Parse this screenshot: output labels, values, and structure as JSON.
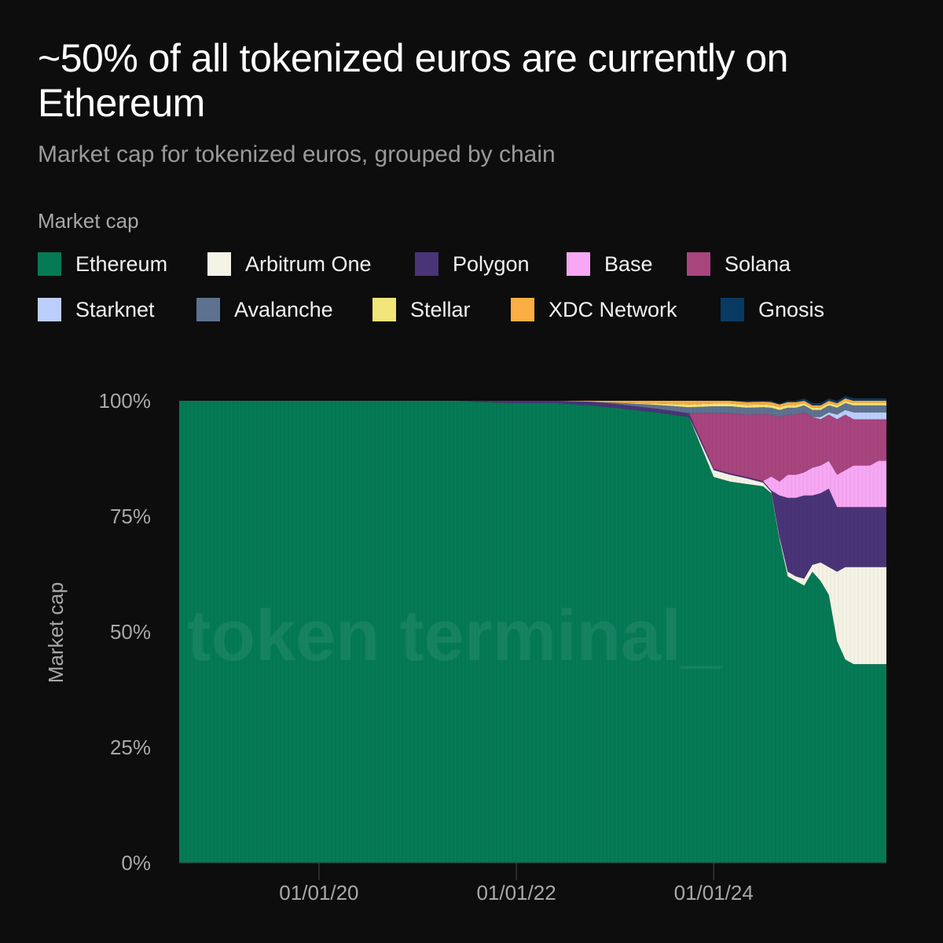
{
  "title": "~50% of all tokenized euros are currently on Ethereum",
  "subtitle": "Market cap for tokenized euros, grouped by chain",
  "legend_title": "Market cap",
  "watermark": "token terminal_",
  "colors": {
    "background": "#0d0d0d",
    "Ethereum": "#057a55",
    "Arbitrum One": "#f5f3e6",
    "Polygon": "#4a3478",
    "Base": "#f7a8f4",
    "Solana": "#a8457f",
    "Starknet": "#bccffc",
    "Avalanche": "#5e7290",
    "Stellar": "#f2e57a",
    "XDC Network": "#fbae42",
    "Gnosis": "#083a62"
  },
  "chart_data": {
    "type": "area",
    "stacked": true,
    "normalized": true,
    "ylabel": "Market cap",
    "y_ticks": [
      "0%",
      "25%",
      "50%",
      "75%",
      "100%"
    ],
    "ylim": [
      0,
      100
    ],
    "x_ticks": [
      "01/01/20",
      "01/01/22",
      "01/01/24"
    ],
    "x": [
      "2018-08",
      "2019-01",
      "2019-06",
      "2020-01",
      "2020-06",
      "2021-01",
      "2021-06",
      "2021-09",
      "2022-01",
      "2022-06",
      "2022-10",
      "2023-01",
      "2023-06",
      "2023-10",
      "2024-01",
      "2024-03",
      "2024-05",
      "2024-07",
      "2024-08",
      "2024-09",
      "2024-10",
      "2024-11",
      "2024-12",
      "2025-01",
      "2025-02",
      "2025-03",
      "2025-04",
      "2025-05",
      "2025-06",
      "2025-07",
      "2025-08",
      "2025-09",
      "2025-10"
    ],
    "series": [
      {
        "name": "Ethereum",
        "values": [
          100,
          100,
          100,
          100,
          100,
          100,
          100,
          99.7,
          99.5,
          99.5,
          99,
          98.5,
          97.5,
          96.5,
          83.5,
          82.5,
          82,
          81.5,
          80,
          70,
          62,
          61,
          60,
          63,
          61,
          58,
          48,
          44,
          43,
          43,
          43,
          43,
          43
        ]
      },
      {
        "name": "Arbitrum One",
        "values": [
          0,
          0,
          0,
          0,
          0,
          0,
          0,
          0,
          0,
          0,
          0,
          0,
          0,
          0,
          1.5,
          1.5,
          1.2,
          0.8,
          0.3,
          0.5,
          1,
          1,
          1.5,
          1.5,
          4,
          6,
          15,
          20,
          21,
          21,
          21,
          21,
          21
        ]
      },
      {
        "name": "Polygon",
        "values": [
          0,
          0,
          0,
          0,
          0,
          0,
          0,
          0.3,
          0.5,
          0.5,
          0.8,
          0.8,
          0.8,
          0.8,
          0.3,
          0.3,
          0.3,
          0.3,
          0.3,
          9,
          16,
          17,
          18,
          15,
          15,
          17,
          14,
          13,
          13,
          13,
          13,
          13,
          13
        ]
      },
      {
        "name": "Base",
        "values": [
          0,
          0,
          0,
          0,
          0,
          0,
          0,
          0,
          0,
          0,
          0,
          0,
          0,
          0,
          0,
          0,
          0,
          0,
          3,
          3,
          5,
          5,
          5,
          6,
          6,
          6,
          7,
          8,
          9,
          9,
          9,
          10,
          10
        ]
      },
      {
        "name": "Solana",
        "values": [
          0,
          0,
          0,
          0,
          0,
          0,
          0,
          0,
          0,
          0,
          0,
          0,
          0,
          0,
          12,
          13,
          13.5,
          14.5,
          13.4,
          14,
          13,
          13,
          13,
          11,
          10,
          10,
          12,
          12,
          10,
          10,
          10,
          9,
          9
        ]
      },
      {
        "name": "Starknet",
        "values": [
          0,
          0,
          0,
          0,
          0,
          0,
          0,
          0,
          0,
          0,
          0,
          0,
          0,
          0,
          0,
          0,
          0,
          0,
          0,
          0,
          0,
          0,
          0,
          0,
          0.5,
          0.5,
          1,
          1,
          1.5,
          1.5,
          1.5,
          1.5,
          1.5
        ]
      },
      {
        "name": "Avalanche",
        "values": [
          0,
          0,
          0,
          0,
          0,
          0,
          0,
          0,
          0,
          0,
          0,
          0.3,
          0.8,
          1.3,
          1.5,
          1.5,
          1.5,
          1.5,
          1.5,
          1.5,
          1.5,
          1.5,
          1.5,
          1.5,
          1.5,
          1.5,
          1.5,
          1.5,
          1.5,
          1.5,
          1.5,
          1.5,
          1.5
        ]
      },
      {
        "name": "Stellar",
        "values": [
          0,
          0,
          0,
          0,
          0,
          0,
          0,
          0,
          0,
          0,
          0,
          0,
          0.3,
          0.6,
          0.6,
          0.6,
          0.6,
          0.6,
          0.6,
          0.6,
          0.6,
          0.6,
          0.5,
          0.5,
          0.5,
          0.5,
          0.5,
          0.5,
          0.5,
          0.5,
          0.5,
          0.5,
          0.5
        ]
      },
      {
        "name": "XDC Network",
        "values": [
          0,
          0,
          0,
          0,
          0,
          0,
          0,
          0,
          0,
          0,
          0.2,
          0.4,
          0.6,
          0.8,
          0.6,
          0.6,
          0.6,
          0.6,
          0.6,
          0.6,
          0.6,
          0.6,
          0.5,
          0.5,
          0.5,
          0.5,
          0.5,
          0.5,
          0.5,
          0.5,
          0.5,
          0.5,
          0.5
        ]
      },
      {
        "name": "Gnosis",
        "values": [
          0,
          0,
          0,
          0,
          0,
          0,
          0,
          0,
          0,
          0,
          0,
          0,
          0,
          0,
          0,
          0,
          0.3,
          0.2,
          0.3,
          0.2,
          0.3,
          0.3,
          0.5,
          0.5,
          0.5,
          0.5,
          0.5,
          0.5,
          0.5,
          0.5,
          0.5,
          0.5,
          0.5
        ]
      }
    ]
  }
}
